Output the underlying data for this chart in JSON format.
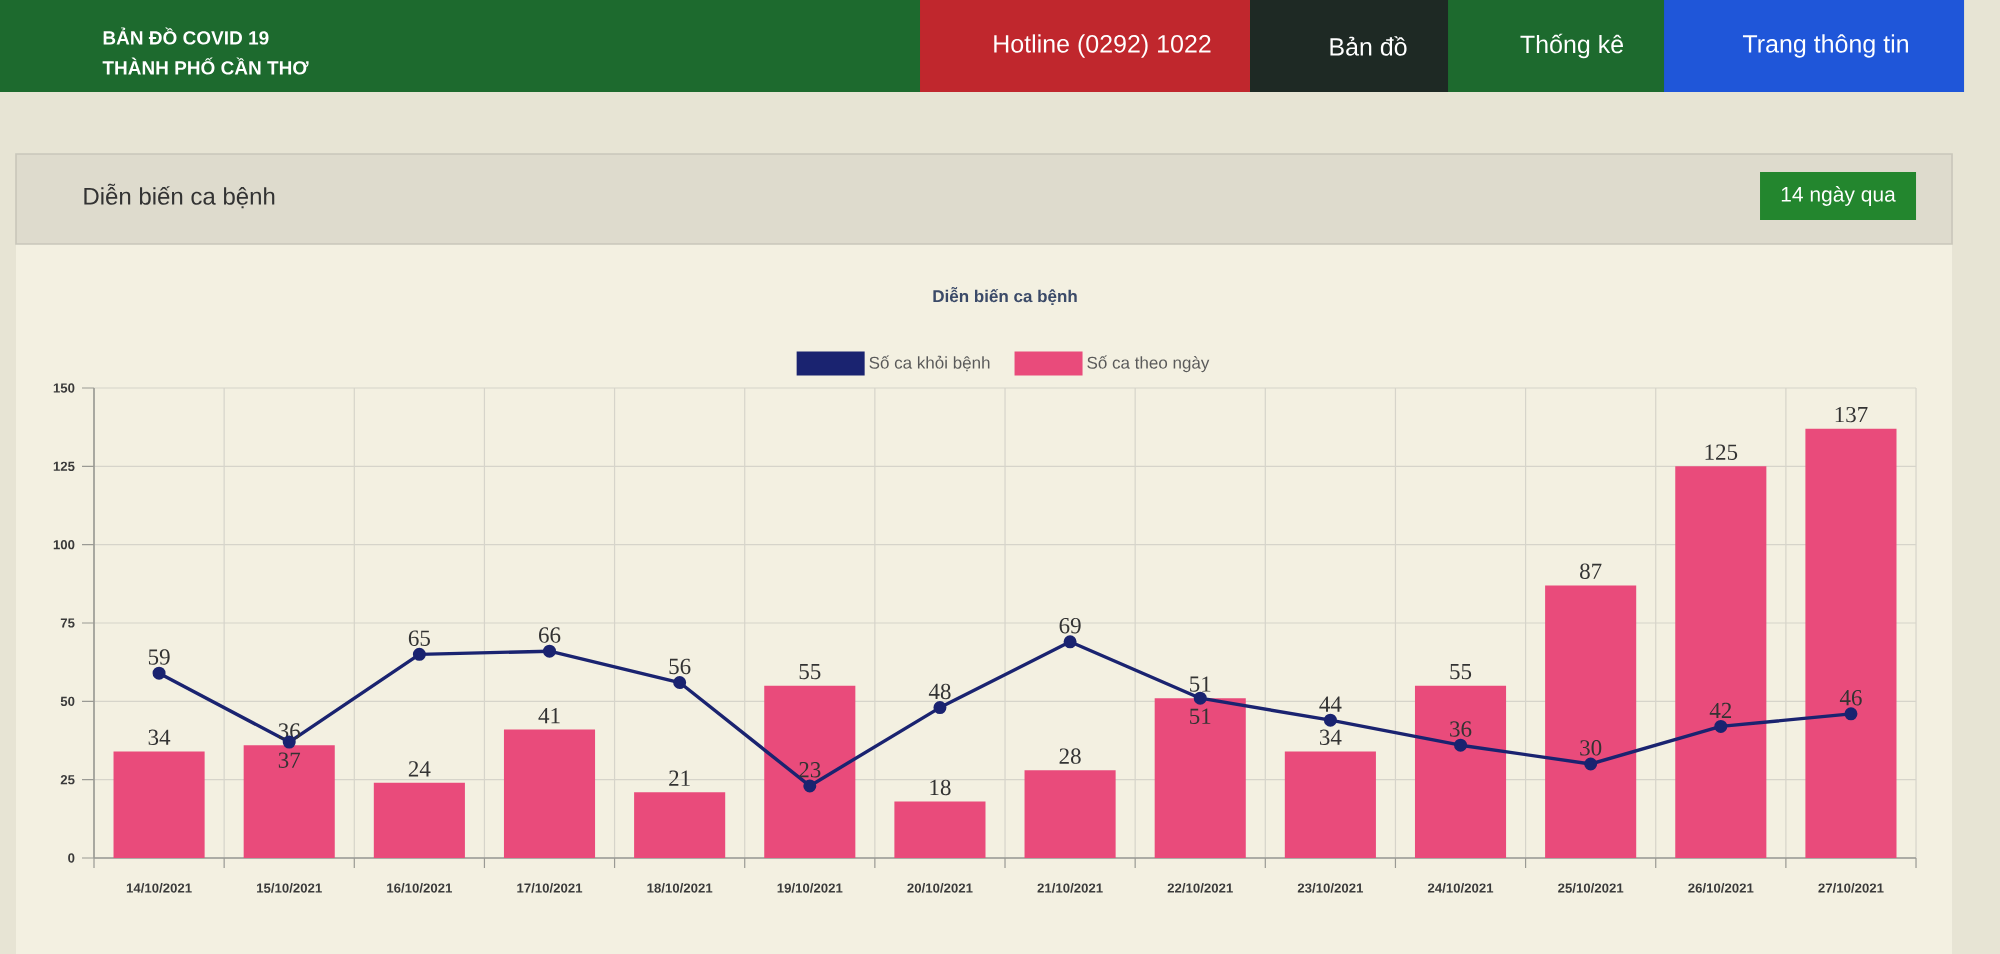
{
  "chart_data": {
    "type": "bar",
    "title": "Diễn biến ca bệnh",
    "annotations": [
      "BẢN ĐỒ COVID 19",
      "THÀNH PHỐ CẦN THƠ",
      "Hotline (0292) 1022",
      "Bản đồ",
      "Thống kê",
      "Trang thông tin",
      "Diễn biến ca bệnh",
      "14 ngày qua"
    ],
    "categories": [
      "14/10/2021",
      "15/10/2021",
      "16/10/2021",
      "17/10/2021",
      "18/10/2021",
      "19/10/2021",
      "20/10/2021",
      "21/10/2021",
      "22/10/2021",
      "23/10/2021",
      "24/10/2021",
      "25/10/2021",
      "26/10/2021",
      "27/10/2021"
    ],
    "series": [
      {
        "name": "Số ca khỏi bệnh",
        "type": "line",
        "color": "#1a2370",
        "values": [
          59,
          37,
          65,
          66,
          56,
          23,
          48,
          69,
          51,
          44,
          36,
          30,
          42,
          46
        ]
      },
      {
        "name": "Số ca theo ngày",
        "color": "#e94b7b",
        "values": [
          34,
          36,
          24,
          41,
          21,
          55,
          18,
          28,
          51,
          34,
          55,
          87,
          125,
          137
        ]
      }
    ],
    "ylim": [
      0,
      150
    ],
    "yticks": [
      0,
      25,
      50,
      75,
      100,
      125,
      150
    ],
    "grid": true,
    "legend": "top",
    "marker": "circle",
    "line_style": "solid",
    "data_labels": true
  }
}
